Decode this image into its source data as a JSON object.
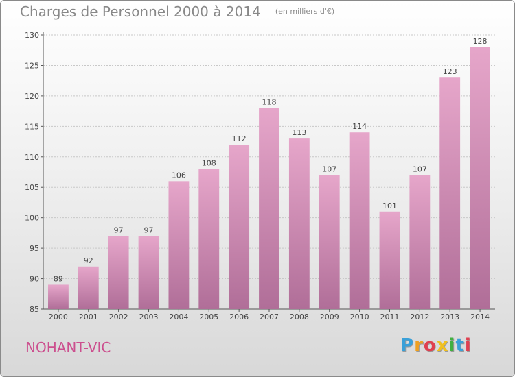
{
  "header": {
    "title": "Charges de Personnel 2000 à 2014",
    "subtitle": "(en milliers d'€)"
  },
  "footer": {
    "commune": "NOHANT-VIC",
    "logo": {
      "letters": [
        "P",
        "r",
        "o",
        "x",
        "i",
        "t",
        "i"
      ],
      "colors": [
        "#3aa0d8",
        "#f0a020",
        "#e04050",
        "#f0c020",
        "#40b040",
        "#3aa0d8",
        "#e04050"
      ]
    }
  },
  "colors": {
    "bar_light": "#e6a6ca",
    "bar_dark": "#b06e98",
    "accent": "#cc4f8e"
  },
  "chart_data": {
    "type": "bar",
    "title": "Charges de Personnel 2000 à 2014",
    "subtitle": "(en milliers d'€)",
    "xlabel": "",
    "ylabel": "",
    "categories": [
      "2000",
      "2001",
      "2002",
      "2003",
      "2004",
      "2005",
      "2006",
      "2007",
      "2008",
      "2009",
      "2010",
      "2011",
      "2012",
      "2013",
      "2014"
    ],
    "values": [
      89,
      92,
      97,
      97,
      106,
      108,
      112,
      118,
      113,
      107,
      114,
      101,
      107,
      123,
      128
    ],
    "ylim": [
      85,
      130
    ],
    "yticks": [
      85,
      90,
      95,
      100,
      105,
      110,
      115,
      120,
      125,
      130
    ],
    "grid": true,
    "data_labels": true
  }
}
